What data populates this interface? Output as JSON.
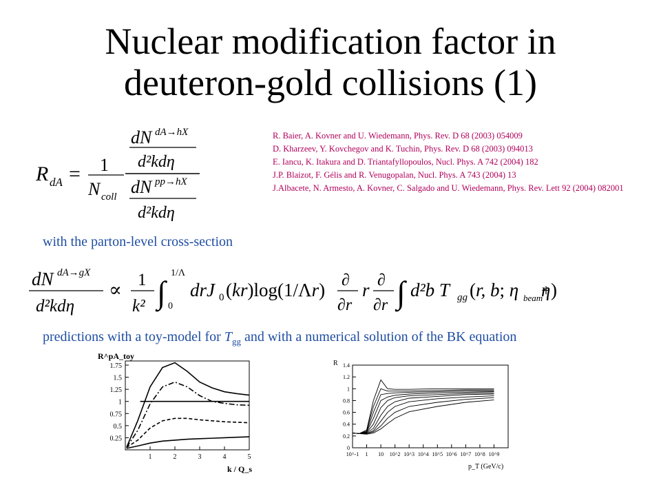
{
  "slide": {
    "title_line1": "Nuclear modification factor in",
    "title_line2": "deuteron-gold collisions (1)",
    "references": [
      "R. Baier, A. Kovner and U. Wiedemann, Phys. Rev. D 68 (2003) 054009",
      "D. Kharzeev, Y. Kovchegov and K. Tuchin, Phys. Rev. D 68 (2003) 094013",
      "E. Iancu, K. Itakura and D. Triantafyllopoulos, Nucl. Phys. A 742 (2004) 182",
      "J.P. Blaizot, F. Gélis and R. Venugopalan, Nucl. Phys. A 743 (2004) 13",
      "J.Albacete, N. Armesto, A. Kovner, C. Salgado and U. Wiedemann, Phys. Rev. Lett 92 (2004) 082001"
    ],
    "parton_text": "with the parton-level cross-section",
    "predict_text_a": "predictions with a toy-model for ",
    "predict_T": "T",
    "predict_sub": "gg",
    "predict_text_b": " and with a numerical solution of the BK equation",
    "colors": {
      "reference_color": "#b0005a",
      "text_blue": "#1f4ea3"
    }
  },
  "chart_data": [
    {
      "type": "line",
      "ylabel": "R^pA_toy",
      "xlabel": "k / Q_s",
      "xlim": [
        0,
        5
      ],
      "ylim": [
        0,
        1.75
      ],
      "xticks": [
        "1",
        "2",
        "3",
        "4",
        "5"
      ],
      "yticks": [
        "0.25",
        "0.5",
        "0.75",
        "1",
        "1.25",
        "1.5",
        "1.75"
      ],
      "series": [
        {
          "style": "solid",
          "x": [
            0.05,
            0.5,
            1,
            1.5,
            2,
            2.5,
            3,
            3.5,
            4,
            4.5,
            5
          ],
          "values": [
            0.05,
            0.6,
            1.3,
            1.7,
            1.8,
            1.62,
            1.4,
            1.28,
            1.2,
            1.16,
            1.13
          ]
        },
        {
          "style": "dashdot",
          "x": [
            0.05,
            0.5,
            1,
            1.5,
            2,
            2.5,
            3,
            3.5,
            4,
            4.5,
            5
          ],
          "values": [
            0.05,
            0.4,
            0.95,
            1.3,
            1.4,
            1.3,
            1.12,
            1.0,
            0.96,
            0.93,
            0.92
          ]
        },
        {
          "style": "dashed",
          "x": [
            0.05,
            0.5,
            1,
            1.5,
            2,
            2.5,
            3,
            3.5,
            4,
            4.5,
            5
          ],
          "values": [
            0.05,
            0.2,
            0.45,
            0.6,
            0.65,
            0.65,
            0.62,
            0.6,
            0.58,
            0.57,
            0.56
          ]
        },
        {
          "style": "solid",
          "x": [
            0.05,
            0.5,
            1,
            1.5,
            2,
            2.5,
            3,
            3.5,
            4,
            4.5,
            5
          ],
          "values": [
            0.03,
            0.08,
            0.14,
            0.18,
            0.2,
            0.22,
            0.23,
            0.24,
            0.25,
            0.26,
            0.27
          ]
        },
        {
          "style": "solid",
          "x": [
            0.6,
            5
          ],
          "values": [
            1,
            1
          ]
        }
      ]
    },
    {
      "type": "line",
      "ylabel": "R",
      "xlabel": "p_T (GeV/c)",
      "xscale": "log",
      "xlim": [
        0.1,
        10000000000
      ],
      "ylim": [
        0,
        1.4
      ],
      "xticks": [
        "10^-1",
        "1",
        "10",
        "10^2",
        "10^3",
        "10^4",
        "10^5",
        "10^6",
        "10^7",
        "10^8",
        "10^9"
      ],
      "yticks": [
        "0",
        "0.2",
        "0.4",
        "0.6",
        "0.8",
        "1",
        "1.2",
        "1.4"
      ],
      "series": [
        {
          "x": [
            0.1,
            0.3,
            1,
            3,
            10,
            30,
            100,
            1000,
            100000,
            10000000,
            1000000000
          ],
          "values": [
            0.25,
            0.24,
            0.3,
            0.8,
            1.15,
            1.0,
            0.99,
            0.99,
            1.0,
            1.0,
            1.0
          ]
        },
        {
          "x": [
            0.1,
            0.3,
            1,
            3,
            10,
            30,
            100,
            1000,
            100000,
            10000000,
            1000000000
          ],
          "values": [
            0.25,
            0.24,
            0.3,
            0.7,
            1.0,
            0.96,
            0.96,
            0.96,
            0.97,
            0.98,
            0.98
          ]
        },
        {
          "x": [
            0.1,
            0.3,
            1,
            3,
            10,
            30,
            100,
            1000,
            100000,
            10000000,
            1000000000
          ],
          "values": [
            0.25,
            0.24,
            0.28,
            0.6,
            0.9,
            0.92,
            0.93,
            0.94,
            0.95,
            0.96,
            0.96
          ]
        },
        {
          "x": [
            0.1,
            0.3,
            1,
            3,
            10,
            30,
            100,
            1000,
            100000,
            10000000,
            1000000000
          ],
          "values": [
            0.25,
            0.24,
            0.27,
            0.5,
            0.8,
            0.86,
            0.89,
            0.91,
            0.93,
            0.94,
            0.95
          ]
        },
        {
          "x": [
            0.1,
            0.3,
            1,
            3,
            10,
            30,
            100,
            1000,
            100000,
            10000000,
            1000000000
          ],
          "values": [
            0.25,
            0.24,
            0.26,
            0.4,
            0.68,
            0.8,
            0.85,
            0.88,
            0.9,
            0.92,
            0.93
          ]
        },
        {
          "x": [
            0.1,
            0.3,
            1,
            3,
            10,
            30,
            100,
            1000,
            100000,
            10000000,
            1000000000
          ],
          "values": [
            0.25,
            0.24,
            0.25,
            0.33,
            0.55,
            0.7,
            0.78,
            0.84,
            0.87,
            0.9,
            0.91
          ]
        },
        {
          "x": [
            0.1,
            0.3,
            1,
            3,
            10,
            30,
            100,
            1000,
            100000,
            10000000,
            1000000000
          ],
          "values": [
            0.25,
            0.24,
            0.24,
            0.29,
            0.45,
            0.6,
            0.7,
            0.78,
            0.83,
            0.86,
            0.88
          ]
        },
        {
          "x": [
            0.1,
            0.3,
            1,
            3,
            10,
            30,
            100,
            1000,
            100000,
            10000000,
            1000000000
          ],
          "values": [
            0.25,
            0.24,
            0.24,
            0.27,
            0.37,
            0.5,
            0.6,
            0.7,
            0.77,
            0.82,
            0.85
          ]
        },
        {
          "x": [
            0.1,
            0.3,
            1,
            3,
            10,
            30,
            100,
            1000,
            100000,
            10000000,
            1000000000
          ],
          "values": [
            0.25,
            0.24,
            0.23,
            0.25,
            0.32,
            0.41,
            0.5,
            0.61,
            0.7,
            0.77,
            0.81
          ]
        }
      ]
    }
  ]
}
